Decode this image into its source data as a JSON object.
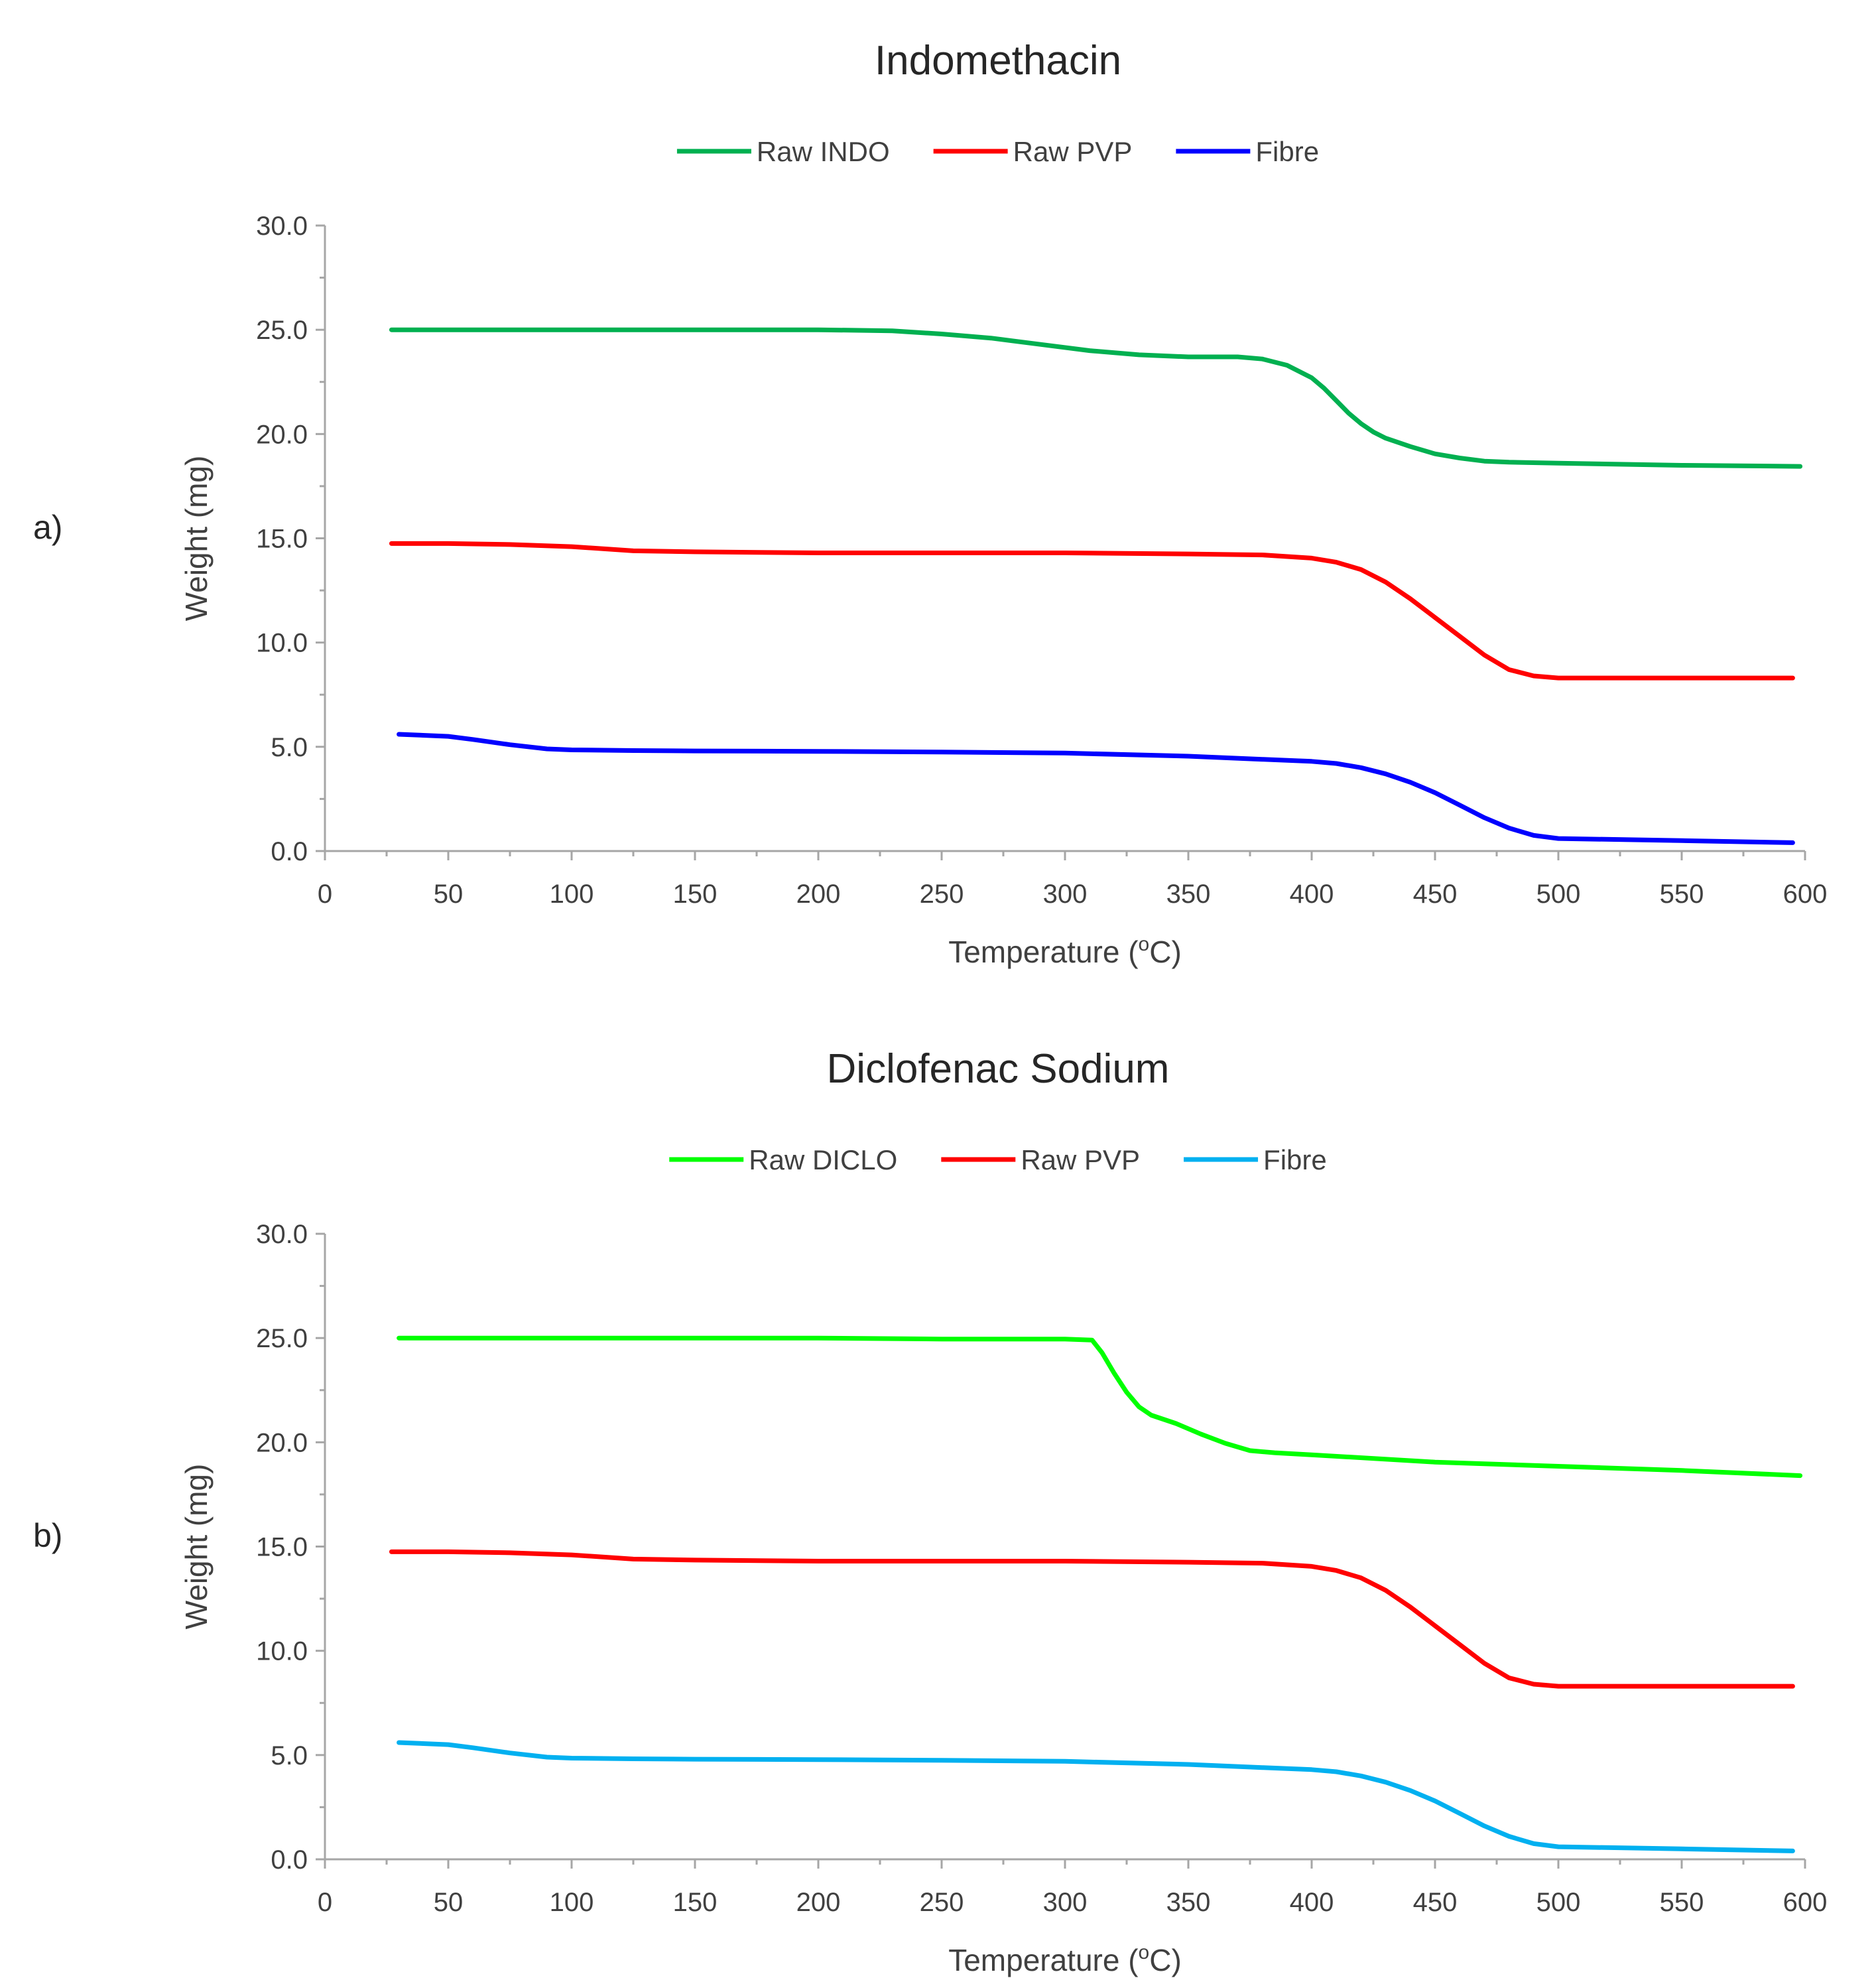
{
  "chart_data": [
    {
      "type": "line",
      "panel_label": "a)",
      "title": "Indomethacin",
      "xlabel": "Temperature (",
      "xlabel_sup": "o",
      "xlabel_end": "C)",
      "ylabel": "Weight (mg)",
      "xlim": [
        0,
        600
      ],
      "ylim": [
        0,
        30
      ],
      "x_ticks": [
        0,
        50,
        100,
        150,
        200,
        250,
        300,
        350,
        400,
        450,
        500,
        550,
        600
      ],
      "x_tick_labels": [
        "0",
        "50",
        "100",
        "150",
        "200",
        "250",
        "300",
        "350",
        "400",
        "450",
        "500",
        "550",
        "600"
      ],
      "y_ticks": [
        0,
        5,
        10,
        15,
        20,
        25,
        30
      ],
      "y_tick_labels": [
        "0.0",
        "5.0",
        "10.0",
        "15.0",
        "20.0",
        "25.0",
        "30.0"
      ],
      "legend_position": "top-center",
      "series": [
        {
          "name": "Raw INDO",
          "color": "#00b050",
          "x": [
            27,
            50,
            100,
            150,
            200,
            230,
            250,
            270,
            290,
            310,
            330,
            350,
            370,
            380,
            390,
            400,
            405,
            410,
            415,
            420,
            425,
            430,
            440,
            450,
            460,
            470,
            480,
            500,
            550,
            598
          ],
          "y": [
            25.0,
            25.0,
            25.0,
            25.0,
            25.0,
            24.95,
            24.8,
            24.6,
            24.3,
            24.0,
            23.8,
            23.7,
            23.7,
            23.6,
            23.3,
            22.7,
            22.2,
            21.6,
            21.0,
            20.5,
            20.1,
            19.8,
            19.4,
            19.05,
            18.85,
            18.7,
            18.65,
            18.6,
            18.5,
            18.45
          ]
        },
        {
          "name": "Raw PVP",
          "color": "#ff0000",
          "x": [
            27,
            50,
            75,
            100,
            125,
            150,
            200,
            250,
            300,
            350,
            380,
            400,
            410,
            420,
            430,
            440,
            450,
            460,
            470,
            480,
            490,
            500,
            550,
            595
          ],
          "y": [
            14.75,
            14.75,
            14.7,
            14.6,
            14.4,
            14.35,
            14.3,
            14.3,
            14.3,
            14.25,
            14.2,
            14.05,
            13.85,
            13.5,
            12.9,
            12.1,
            11.2,
            10.3,
            9.4,
            8.7,
            8.4,
            8.3,
            8.3,
            8.3
          ]
        },
        {
          "name": "Fibre",
          "color": "#0000ff",
          "x": [
            30,
            50,
            60,
            75,
            90,
            100,
            125,
            150,
            200,
            250,
            300,
            350,
            380,
            400,
            410,
            420,
            430,
            440,
            450,
            460,
            470,
            480,
            490,
            500,
            550,
            595
          ],
          "y": [
            5.6,
            5.5,
            5.35,
            5.1,
            4.9,
            4.85,
            4.82,
            4.8,
            4.78,
            4.75,
            4.7,
            4.55,
            4.4,
            4.3,
            4.2,
            4.0,
            3.7,
            3.3,
            2.8,
            2.2,
            1.6,
            1.1,
            0.75,
            0.6,
            0.5,
            0.4
          ]
        }
      ]
    },
    {
      "type": "line",
      "panel_label": "b)",
      "title": "Diclofenac Sodium",
      "xlabel": "Temperature (",
      "xlabel_sup": "o",
      "xlabel_end": "C)",
      "ylabel": "Weight (mg)",
      "xlim": [
        0,
        600
      ],
      "ylim": [
        0,
        30
      ],
      "x_ticks": [
        0,
        50,
        100,
        150,
        200,
        250,
        300,
        350,
        400,
        450,
        500,
        550,
        600
      ],
      "x_tick_labels": [
        "0",
        "50",
        "100",
        "150",
        "200",
        "250",
        "300",
        "350",
        "400",
        "450",
        "500",
        "550",
        "600"
      ],
      "y_ticks": [
        0,
        5,
        10,
        15,
        20,
        25,
        30
      ],
      "y_tick_labels": [
        "0.0",
        "5.0",
        "10.0",
        "15.0",
        "20.0",
        "25.0",
        "30.0"
      ],
      "legend_position": "top-center",
      "series": [
        {
          "name": "Raw DICLO",
          "color": "#00ff00",
          "x": [
            30,
            100,
            200,
            250,
            300,
            311,
            315,
            320,
            325,
            330,
            335,
            345,
            355,
            365,
            375,
            385,
            400,
            450,
            500,
            550,
            598
          ],
          "y": [
            25.0,
            25.0,
            25.0,
            24.95,
            24.95,
            24.9,
            24.3,
            23.3,
            22.4,
            21.7,
            21.3,
            20.9,
            20.4,
            19.95,
            19.6,
            19.5,
            19.4,
            19.05,
            18.85,
            18.65,
            18.4
          ]
        },
        {
          "name": "Raw PVP",
          "color": "#ff0000",
          "x": [
            27,
            50,
            75,
            100,
            125,
            150,
            200,
            250,
            300,
            350,
            380,
            400,
            410,
            420,
            430,
            440,
            450,
            460,
            470,
            480,
            490,
            500,
            550,
            595
          ],
          "y": [
            14.75,
            14.75,
            14.7,
            14.6,
            14.4,
            14.35,
            14.3,
            14.3,
            14.3,
            14.25,
            14.2,
            14.05,
            13.85,
            13.5,
            12.9,
            12.1,
            11.2,
            10.3,
            9.4,
            8.7,
            8.4,
            8.3,
            8.3,
            8.3
          ]
        },
        {
          "name": "Fibre",
          "color": "#00b0f0",
          "x": [
            30,
            50,
            60,
            75,
            90,
            100,
            125,
            150,
            200,
            250,
            300,
            350,
            380,
            400,
            410,
            420,
            430,
            440,
            450,
            460,
            470,
            480,
            490,
            500,
            550,
            595
          ],
          "y": [
            5.6,
            5.5,
            5.35,
            5.1,
            4.9,
            4.85,
            4.82,
            4.8,
            4.78,
            4.75,
            4.7,
            4.55,
            4.4,
            4.3,
            4.2,
            4.0,
            3.7,
            3.3,
            2.8,
            2.2,
            1.6,
            1.1,
            0.75,
            0.6,
            0.5,
            0.4
          ]
        }
      ]
    }
  ]
}
